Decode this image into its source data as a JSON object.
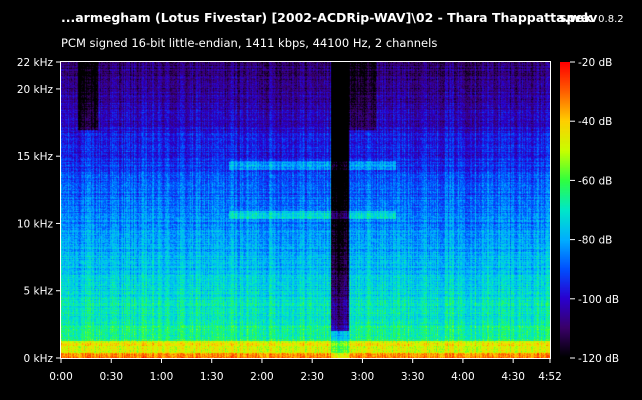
{
  "header": {
    "file_title": "...armegham (Lotus Fivestar) [2002-ACDRip-WAV]\\02 - Thara Thappatta.wav",
    "app_name": "spek",
    "app_version": "0.8.2",
    "stream_info": "PCM signed 16-bit little-endian, 1411 kbps, 44100 Hz, 2 channels"
  },
  "chart_data": {
    "type": "heatmap",
    "x_axis": {
      "range_seconds": [
        0,
        292
      ],
      "ticks": [
        {
          "value": 0,
          "label": "0:00"
        },
        {
          "value": 30,
          "label": "0:30"
        },
        {
          "value": 60,
          "label": "1:00"
        },
        {
          "value": 90,
          "label": "1:30"
        },
        {
          "value": 120,
          "label": "2:00"
        },
        {
          "value": 150,
          "label": "2:30"
        },
        {
          "value": 180,
          "label": "3:00"
        },
        {
          "value": 210,
          "label": "3:30"
        },
        {
          "value": 240,
          "label": "4:00"
        },
        {
          "value": 270,
          "label": "4:30"
        },
        {
          "value": 292,
          "label": "4:52"
        }
      ]
    },
    "y_axis": {
      "range_khz": [
        0,
        22
      ],
      "ticks": [
        {
          "value": 0,
          "label": "0 kHz"
        },
        {
          "value": 5,
          "label": "5 kHz"
        },
        {
          "value": 10,
          "label": "10 kHz"
        },
        {
          "value": 15,
          "label": "15 kHz"
        },
        {
          "value": 20,
          "label": "20 kHz"
        },
        {
          "value": 22,
          "label": "22 kHz"
        }
      ]
    },
    "color_scale": {
      "range_db": [
        -120,
        -20
      ],
      "ticks": [
        {
          "value": -20,
          "label": "-20 dB"
        },
        {
          "value": -40,
          "label": "-40 dB"
        },
        {
          "value": -60,
          "label": "-60 dB"
        },
        {
          "value": -80,
          "label": "-80 dB"
        },
        {
          "value": -100,
          "label": "-100 dB"
        },
        {
          "value": -120,
          "label": "-120 dB"
        }
      ],
      "colors": [
        "#000000",
        "#3a0068",
        "#2a00d0",
        "#0050ff",
        "#00b0ff",
        "#00e8c8",
        "#30ff40",
        "#c8ff00",
        "#ffd000",
        "#ff6000",
        "#ff0000"
      ]
    }
  }
}
